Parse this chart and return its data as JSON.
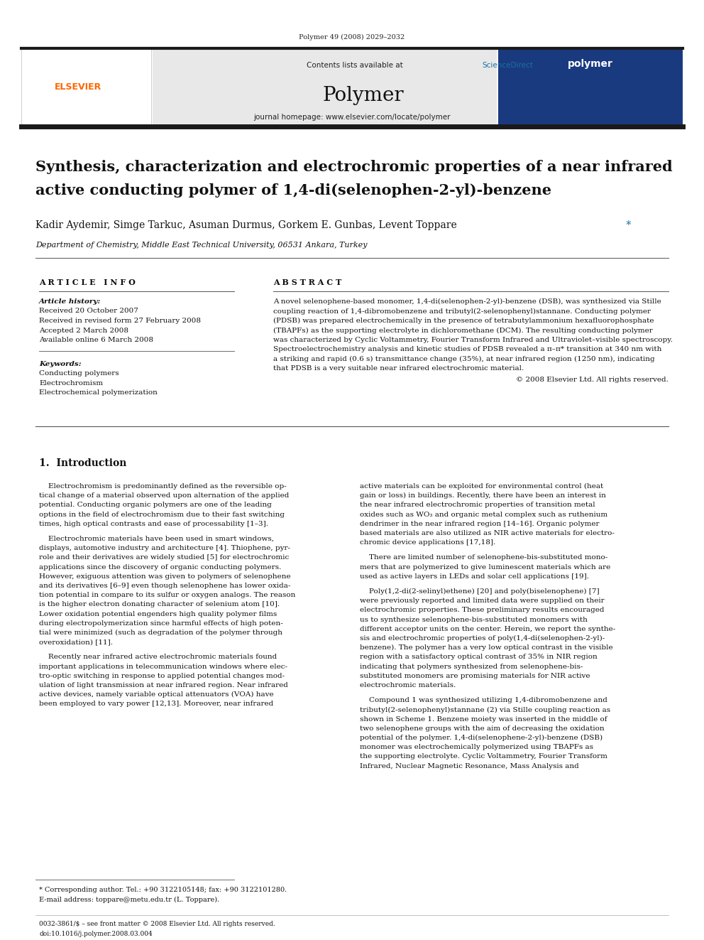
{
  "page_width": 9.92,
  "page_height": 13.23,
  "bg_color": "#ffffff",
  "journal_ref": "Polymer 49 (2008) 2029–2032",
  "contents_line": "Contents lists available at ",
  "sciencedirect": "ScienceDirect",
  "journal_name": "Polymer",
  "journal_homepage": "journal homepage: www.elsevier.com/locate/polymer",
  "title_line1": "Synthesis, characterization and electrochromic properties of a near infrared",
  "title_line2": "active conducting polymer of 1,4-di(selenophen-2-yl)-benzene",
  "authors_main": "Kadir Aydemir, Simge Tarkuc, Asuman Durmus, Gorkem E. Gunbas, Levent Toppare",
  "affiliation": "Department of Chemistry, Middle East Technical University, 06531 Ankara, Turkey",
  "article_info_header": "A R T I C L E   I N F O",
  "abstract_header": "A B S T R A C T",
  "article_history_label": "Article history:",
  "received": "Received 20 October 2007",
  "revised": "Received in revised form 27 February 2008",
  "accepted": "Accepted 2 March 2008",
  "online": "Available online 6 March 2008",
  "keywords_label": "Keywords:",
  "keyword1": "Conducting polymers",
  "keyword2": "Electrochromism",
  "keyword3": "Electrochemical polymerization",
  "abstract_lines": [
    "A novel selenophene-based monomer, 1,4-di(selenophen-2-yl)-benzene (DSB), was synthesized via Stille",
    "coupling reaction of 1,4-dibromobenzene and tributyl(2-selenophenyl)stannane. Conducting polymer",
    "(PDSB) was prepared electrochemically in the presence of tetrabutylammonium hexafluorophosphate",
    "(TBAPFs) as the supporting electrolyte in dichloromethane (DCM). The resulting conducting polymer",
    "was characterized by Cyclic Voltammetry, Fourier Transform Infrared and Ultraviolet–visible spectroscopy.",
    "Spectroelectrochemistry analysis and kinetic studies of PDSB revealed a π–π* transition at 340 nm with",
    "a striking and rapid (0.6 s) transmittance change (35%), at near infrared region (1250 nm), indicating",
    "that PDSB is a very suitable near infrared electrochromic material."
  ],
  "copyright": "© 2008 Elsevier Ltd. All rights reserved.",
  "section1_header": "1.  Introduction",
  "intro_para1_lines": [
    "Electrochromism is predominantly defined as the reversible op-",
    "tical change of a material observed upon alternation of the applied",
    "potential. Conducting organic polymers are one of the leading",
    "options in the field of electrochromism due to their fast switching",
    "times, high optical contrasts and ease of processability [1–3]."
  ],
  "intro_para2_lines": [
    "Electrochromic materials have been used in smart windows,",
    "displays, automotive industry and architecture [4]. Thiophene, pyr-",
    "role and their derivatives are widely studied [5] for electrochromic",
    "applications since the discovery of organic conducting polymers.",
    "However, exiguous attention was given to polymers of selenophene",
    "and its derivatives [6–9] even though selenophene has lower oxida-",
    "tion potential in compare to its sulfur or oxygen analogs. The reason",
    "is the higher electron donating character of selenium atom [10].",
    "Lower oxidation potential engenders high quality polymer films",
    "during electropolymerization since harmful effects of high poten-",
    "tial were minimized (such as degradation of the polymer through",
    "overoxidation) [11]."
  ],
  "intro_para3_lines": [
    "Recently near infrared active electrochromic materials found",
    "important applications in telecommunication windows where elec-",
    "tro-optic switching in response to applied potential changes mod-",
    "ulation of light transmission at near infrared region. Near infrared",
    "active devices, namely variable optical attenuators (VOA) have",
    "been employed to vary power [12,13]. Moreover, near infrared"
  ],
  "right_para1_lines": [
    "active materials can be exploited for environmental control (heat",
    "gain or loss) in buildings. Recently, there have been an interest in",
    "the near infrared electrochromic properties of transition metal",
    "oxides such as WO₃ and organic metal complex such as ruthenium",
    "dendrimer in the near infrared region [14–16]. Organic polymer",
    "based materials are also utilized as NIR active materials for electro-",
    "chromic device applications [17,18]."
  ],
  "right_para2_lines": [
    "There are limited number of selenophene-bis-substituted mono-",
    "mers that are polymerized to give luminescent materials which are",
    "used as active layers in LEDs and solar cell applications [19]."
  ],
  "right_para3_lines": [
    "Poly(1,2-di(2-selinyl)ethene) [20] and poly(biselenophene) [7]",
    "were previously reported and limited data were supplied on their",
    "electrochromic properties. These preliminary results encouraged",
    "us to synthesize selenophene-bis-substituted monomers with",
    "different acceptor units on the center. Herein, we report the synthe-",
    "sis and electrochromic properties of poly(1,4-di(selenophen-2-yl)-",
    "benzene). The polymer has a very low optical contrast in the visible",
    "region with a satisfactory optical contrast of 35% in NIR region",
    "indicating that polymers synthesized from selenophene-bis-",
    "substituted monomers are promising materials for NIR active",
    "electrochromic materials."
  ],
  "right_para4_lines": [
    "Compound 1 was synthesized utilizing 1,4-dibromobenzene and",
    "tributyl(2-selenophenyl)stannane (2) via Stille coupling reaction as",
    "shown in Scheme 1. Benzene moiety was inserted in the middle of",
    "two selenophene groups with the aim of decreasing the oxidation",
    "potential of the polymer. 1,4-di(selenophene-2-yl)-benzene (DSB)",
    "monomer was electrochemically polymerized using TBAPFs as",
    "the supporting electrolyte. Cyclic Voltammetry, Fourier Transform",
    "Infrared, Nuclear Magnetic Resonance, Mass Analysis and"
  ],
  "footnote_star": "* Corresponding author. Tel.: +90 3122105148; fax: +90 3122101280.",
  "footnote_email": "E-mail address: toppare@metu.edu.tr (L. Toppare).",
  "footer_issn": "0032-3861/$ – see front matter © 2008 Elsevier Ltd. All rights reserved.",
  "footer_doi": "doi:10.1016/j.polymer.2008.03.004",
  "header_bg": "#e8e8e8",
  "thick_bar_color": "#1a1a1a",
  "elsevier_color": "#ff6600",
  "sciencedirect_color": "#1a6fa0",
  "blue_color": "#1a6fa0"
}
